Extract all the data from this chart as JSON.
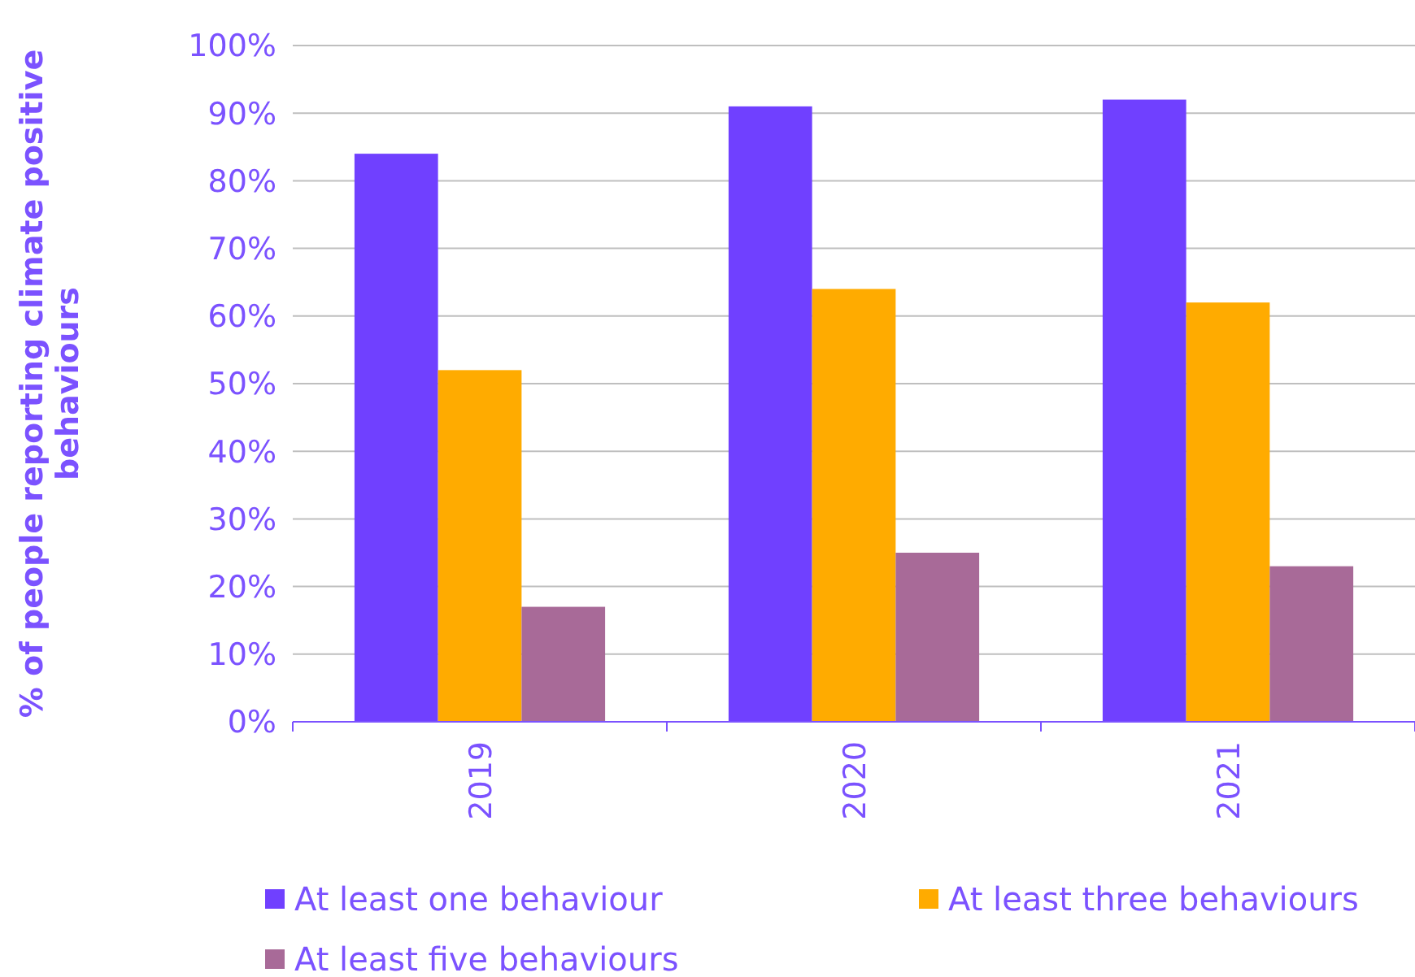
{
  "chart_data": {
    "type": "bar",
    "ylabel": "% of people reporting climate positive behaviours",
    "categories": [
      "2019",
      "2020",
      "2021"
    ],
    "series": [
      {
        "name": "At least one behaviour",
        "color": "#7040ff",
        "values": [
          84,
          91,
          92
        ]
      },
      {
        "name": "At least three behaviours",
        "color": "#ffab00",
        "values": [
          52,
          64,
          62
        ]
      },
      {
        "name": "At least five behaviours",
        "color": "#a86a98",
        "values": [
          17,
          25,
          23
        ]
      }
    ],
    "ylim": [
      0,
      100
    ],
    "yticks": [
      {
        "value": 0,
        "label": "0%"
      },
      {
        "value": 10,
        "label": "10%"
      },
      {
        "value": 20,
        "label": "20%"
      },
      {
        "value": 30,
        "label": "30%"
      },
      {
        "value": 40,
        "label": "40%"
      },
      {
        "value": 50,
        "label": "50%"
      },
      {
        "value": 60,
        "label": "60%"
      },
      {
        "value": 70,
        "label": "70%"
      },
      {
        "value": 80,
        "label": "80%"
      },
      {
        "value": 90,
        "label": "90%"
      },
      {
        "value": 100,
        "label": "100%"
      }
    ],
    "grid": "y",
    "legend": "bottom"
  }
}
